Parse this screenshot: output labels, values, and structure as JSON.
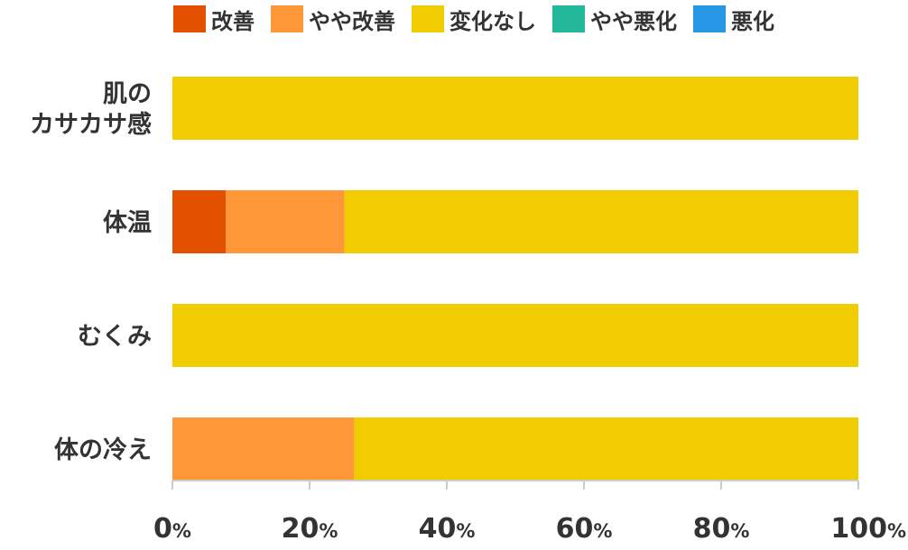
{
  "chart_data": {
    "type": "bar",
    "orientation": "horizontal",
    "stacked": true,
    "categories": [
      [
        "肌の",
        "カサカサ感"
      ],
      [
        "体温"
      ],
      [
        "むくみ"
      ],
      [
        "体の冷え"
      ]
    ],
    "series": [
      {
        "name": "改善",
        "color": "#e35000",
        "values": [
          0,
          7.8,
          0,
          0
        ]
      },
      {
        "name": "やや改善",
        "color": "#ff9738",
        "values": [
          0,
          17.3,
          0,
          26.5
        ]
      },
      {
        "name": "変化なし",
        "color": "#f0cc00",
        "values": [
          100,
          74.9,
          100,
          73.5
        ]
      },
      {
        "name": "やや悪化",
        "color": "#23b89a",
        "values": [
          0,
          0,
          0,
          0
        ]
      },
      {
        "name": "悪化",
        "color": "#2897e6",
        "values": [
          0,
          0,
          0,
          0
        ]
      }
    ],
    "xlim": [
      0,
      100
    ],
    "ticks": [
      0,
      20,
      40,
      60,
      80,
      100
    ],
    "tick_suffix": "%",
    "legend_position": "top",
    "grid": false
  }
}
